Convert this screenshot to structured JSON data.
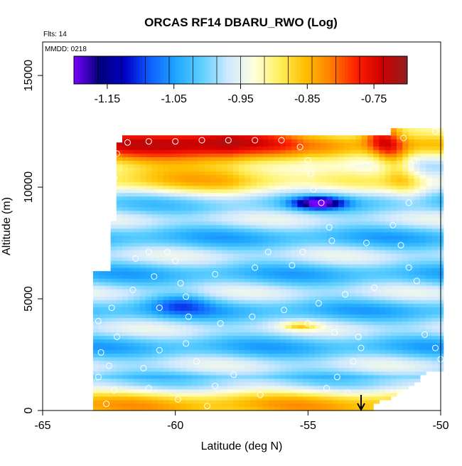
{
  "chart_data": {
    "type": "heatmap",
    "title": "ORCAS RF14 DBARU_RWO (Log)",
    "annotations": [
      "Flts: 14",
      "MMDD: 0218"
    ],
    "xlabel": "Latitude (deg N)",
    "ylabel": "Altitude (m)",
    "xlim": [
      -65,
      -50
    ],
    "ylim": [
      0,
      16500
    ],
    "x_ticks": [
      "-65",
      "-60",
      "-55",
      "-50"
    ],
    "y_ticks": [
      "0",
      "5000",
      "10000",
      "15000"
    ],
    "colorbar": {
      "range": [
        -1.2,
        -0.7
      ],
      "ticks": [
        "-1.15",
        "-1.05",
        "-0.95",
        "-0.85",
        "-0.75"
      ],
      "colors": [
        "#7a00ff",
        "#00007a",
        "#0000c8",
        "#1060ff",
        "#1ea8ff",
        "#60d0ff",
        "#cfe8ff",
        "#ffffe0",
        "#fff060",
        "#ffc000",
        "#ff8000",
        "#ff2000",
        "#d00000",
        "#902020"
      ]
    },
    "marker": {
      "x": -53,
      "label": "arrow"
    },
    "observations": [
      {
        "lat": -62.6,
        "alt": 300
      },
      {
        "lat": -62.3,
        "alt": 900
      },
      {
        "lat": -62.9,
        "alt": 1500
      },
      {
        "lat": -62.5,
        "alt": 2000
      },
      {
        "lat": -62.8,
        "alt": 2600
      },
      {
        "lat": -62.2,
        "alt": 3300
      },
      {
        "lat": -62.9,
        "alt": 4000
      },
      {
        "lat": -62.4,
        "alt": 4600
      },
      {
        "lat": -61.6,
        "alt": 5400
      },
      {
        "lat": -60.8,
        "alt": 6000
      },
      {
        "lat": -61.5,
        "alt": 6800
      },
      {
        "lat": -62.9,
        "alt": 7500
      },
      {
        "lat": -62.6,
        "alt": 8400
      },
      {
        "lat": -62.6,
        "alt": 9300
      },
      {
        "lat": -62.3,
        "alt": 10400
      },
      {
        "lat": -62.2,
        "alt": 11500
      },
      {
        "lat": -61.8,
        "alt": 12000
      },
      {
        "lat": -61.0,
        "alt": 12050
      },
      {
        "lat": -60.0,
        "alt": 12050
      },
      {
        "lat": -59.0,
        "alt": 12100
      },
      {
        "lat": -58.0,
        "alt": 12100
      },
      {
        "lat": -57.0,
        "alt": 12100
      },
      {
        "lat": -56.0,
        "alt": 12100
      },
      {
        "lat": -55.3,
        "alt": 11800
      },
      {
        "lat": -55.0,
        "alt": 11200
      },
      {
        "lat": -54.9,
        "alt": 10600
      },
      {
        "lat": -54.8,
        "alt": 9900
      },
      {
        "lat": -54.5,
        "alt": 9300
      },
      {
        "lat": -54.2,
        "alt": 8200
      },
      {
        "lat": -54.1,
        "alt": 7600
      },
      {
        "lat": -55.2,
        "alt": 7100
      },
      {
        "lat": -56.5,
        "alt": 7100
      },
      {
        "lat": -55.6,
        "alt": 6500
      },
      {
        "lat": -57.0,
        "alt": 6400
      },
      {
        "lat": -58.5,
        "alt": 6100
      },
      {
        "lat": -59.8,
        "alt": 5700
      },
      {
        "lat": -59.6,
        "alt": 5100
      },
      {
        "lat": -60.6,
        "alt": 4600
      },
      {
        "lat": -59.5,
        "alt": 4200
      },
      {
        "lat": -58.3,
        "alt": 3900
      },
      {
        "lat": -57.1,
        "alt": 4200
      },
      {
        "lat": -55.9,
        "alt": 4500
      },
      {
        "lat": -54.6,
        "alt": 4800
      },
      {
        "lat": -53.6,
        "alt": 5200
      },
      {
        "lat": -52.5,
        "alt": 5500
      },
      {
        "lat": -51.2,
        "alt": 6400
      },
      {
        "lat": -50.9,
        "alt": 5800
      },
      {
        "lat": -50.6,
        "alt": 3400
      },
      {
        "lat": -50.2,
        "alt": 2800
      },
      {
        "lat": -50.0,
        "alt": 2300
      },
      {
        "lat": -52.8,
        "alt": 7500
      },
      {
        "lat": -51.5,
        "alt": 7400
      },
      {
        "lat": -51.8,
        "alt": 8300
      },
      {
        "lat": -51.2,
        "alt": 9300
      },
      {
        "lat": -51.0,
        "alt": 11200
      },
      {
        "lat": -51.4,
        "alt": 12200
      },
      {
        "lat": -50.2,
        "alt": 12500
      },
      {
        "lat": -55.0,
        "alt": 3900
      },
      {
        "lat": -54.0,
        "alt": 3500
      },
      {
        "lat": -53.1,
        "alt": 3300
      },
      {
        "lat": -53.0,
        "alt": 2800
      },
      {
        "lat": -53.3,
        "alt": 2200
      },
      {
        "lat": -53.9,
        "alt": 1500
      },
      {
        "lat": -54.3,
        "alt": 1000
      },
      {
        "lat": -53.5,
        "alt": 800
      },
      {
        "lat": -56.8,
        "alt": 700
      },
      {
        "lat": -57.8,
        "alt": 1600
      },
      {
        "lat": -58.5,
        "alt": 1100
      },
      {
        "lat": -59.2,
        "alt": 2200
      },
      {
        "lat": -59.6,
        "alt": 3000
      },
      {
        "lat": -60.6,
        "alt": 2700
      },
      {
        "lat": -61.2,
        "alt": 1900
      },
      {
        "lat": -61.0,
        "alt": 1000
      },
      {
        "lat": -59.9,
        "alt": 500
      },
      {
        "lat": -58.8,
        "alt": 200
      },
      {
        "lat": -60.0,
        "alt": 6700
      },
      {
        "lat": -61.0,
        "alt": 7100
      },
      {
        "lat": -60.3,
        "alt": 7100
      }
    ]
  }
}
